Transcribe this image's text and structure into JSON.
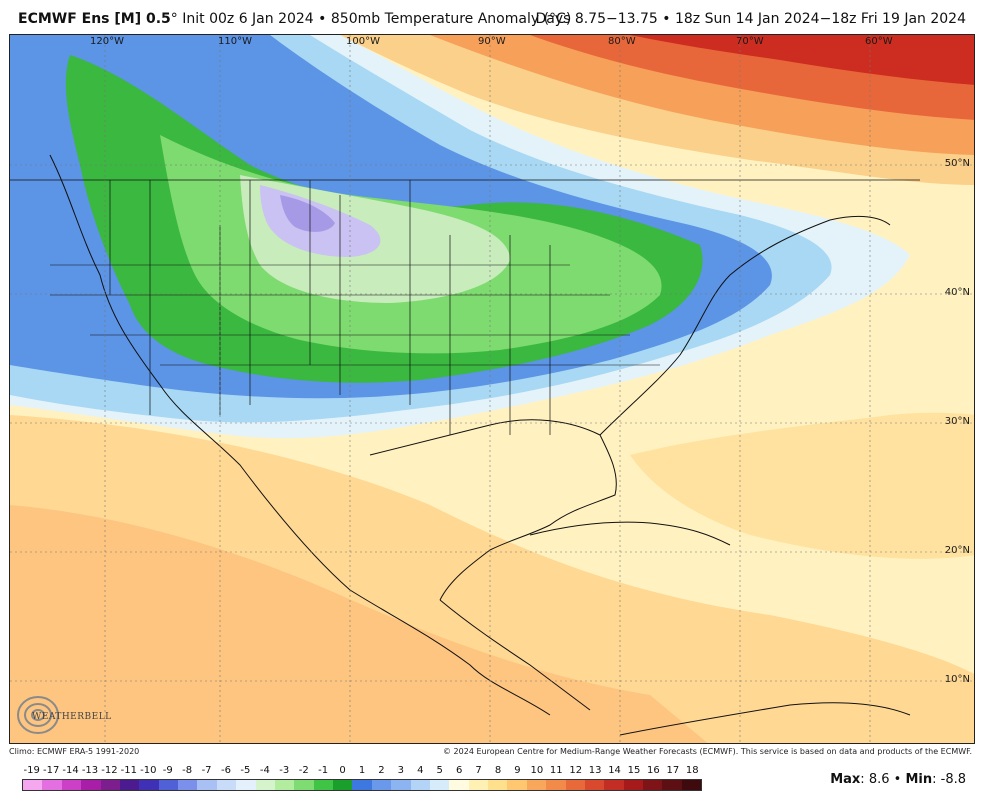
{
  "header": {
    "model": "ECMWF Ens [M] 0.5",
    "deg": "°",
    "init": "Init 00z 6 Jan 2024",
    "bullet": "•",
    "field": "850mb Temperature Anomaly (°C)",
    "range": "Days 8.75−13.75 • 18z Sun 14 Jan 2024−18z Fri 19 Jan 2024"
  },
  "lon_labels": [
    "120°W",
    "110°W",
    "100°W",
    "90°W",
    "80°W",
    "70°W",
    "60°W"
  ],
  "lat_labels": [
    "50°N",
    "40°N",
    "30°N",
    "20°N",
    "10°N"
  ],
  "logo": {
    "text": "WEATHERBELL"
  },
  "footer": {
    "climo": "Climo: ECMWF ERA-5 1991-2020",
    "copyright": "© 2024 European Centre for Medium-Range Weather Forecasts (ECMWF). This service is based on data and products of the ECMWF."
  },
  "colorbar": {
    "ticks": [
      "-19",
      "-17",
      "-14",
      "-13",
      "-12",
      "-11",
      "-10",
      "-9",
      "-8",
      "-7",
      "-6",
      "-5",
      "-4",
      "-3",
      "-2",
      "-1",
      "0",
      "1",
      "2",
      "3",
      "4",
      "5",
      "6",
      "7",
      "8",
      "9",
      "10",
      "11",
      "12",
      "13",
      "14",
      "15",
      "16",
      "17",
      "18"
    ],
    "colors": [
      "#f5a8f0",
      "#e46fe0",
      "#cc3fc7",
      "#a81ea6",
      "#7d1e8f",
      "#4b1b8f",
      "#3f30b6",
      "#5060d6",
      "#7a90ea",
      "#a8c0f4",
      "#c8dcfa",
      "#e4f0fc",
      "#d6f4cc",
      "#b2ec9f",
      "#7fdc72",
      "#3fc445",
      "#1a9f2d",
      "#3c78e0",
      "#6a98ea",
      "#8cb4f0",
      "#b4d4f7",
      "#d7ecfa",
      "#fffbe0",
      "#fff0b3",
      "#ffe08c",
      "#ffc870",
      "#f9a85b",
      "#f28b4a",
      "#e86a3a",
      "#d8492d",
      "#c22d24",
      "#a61a1c",
      "#7f1418",
      "#5e0f14",
      "#3e0a0e"
    ]
  },
  "stats": {
    "max_label": "Max",
    "max_value": "8.6",
    "sep": "•",
    "min_label": "Min",
    "min_value": "-8.8"
  }
}
